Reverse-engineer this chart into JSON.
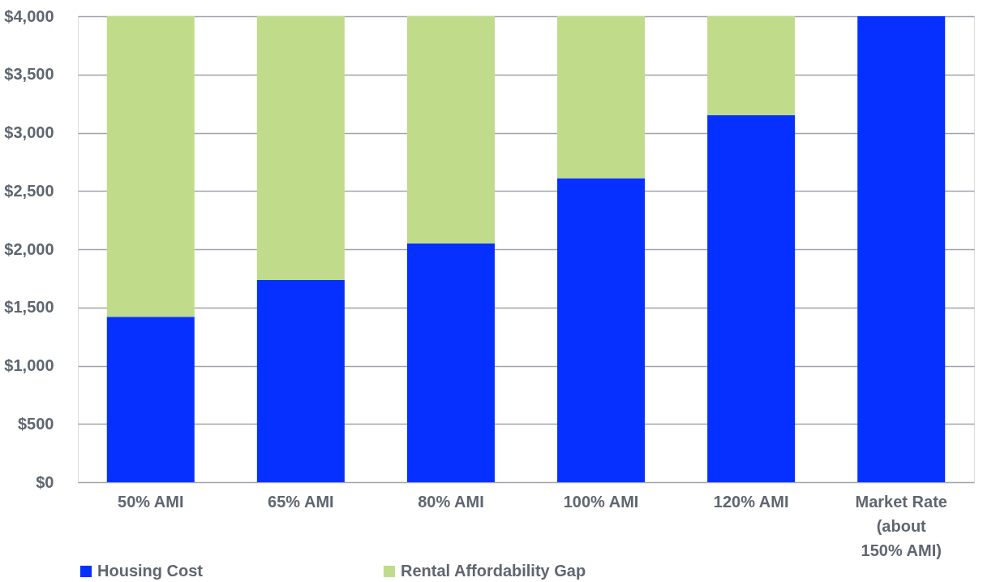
{
  "chart_data": {
    "type": "bar",
    "stacked": true,
    "categories": [
      "50% AMI",
      "65% AMI",
      "80% AMI",
      "100% AMI",
      "120% AMI",
      "Market Rate\n(about\n150% AMI)"
    ],
    "series": [
      {
        "name": "Housing Cost",
        "color": "#0530ff",
        "values": [
          1420,
          1735,
          2050,
          2610,
          3150,
          4000
        ]
      },
      {
        "name": "Rental Affordability Gap",
        "color": "#c0dc8a",
        "values": [
          2580,
          2265,
          1950,
          1390,
          850,
          0
        ]
      }
    ],
    "ylim": [
      0,
      4000
    ],
    "yticks": [
      {
        "value": 0,
        "label": "$0"
      },
      {
        "value": 500,
        "label": "$500"
      },
      {
        "value": 1000,
        "label": "$1,000"
      },
      {
        "value": 1500,
        "label": "$1,500"
      },
      {
        "value": 2000,
        "label": "$2,000"
      },
      {
        "value": 2500,
        "label": "$2,500"
      },
      {
        "value": 3000,
        "label": "$3,000"
      },
      {
        "value": 3500,
        "label": "$3,500"
      },
      {
        "value": 4000,
        "label": "$4,000"
      }
    ],
    "grid": "y",
    "legend": "bottom"
  }
}
